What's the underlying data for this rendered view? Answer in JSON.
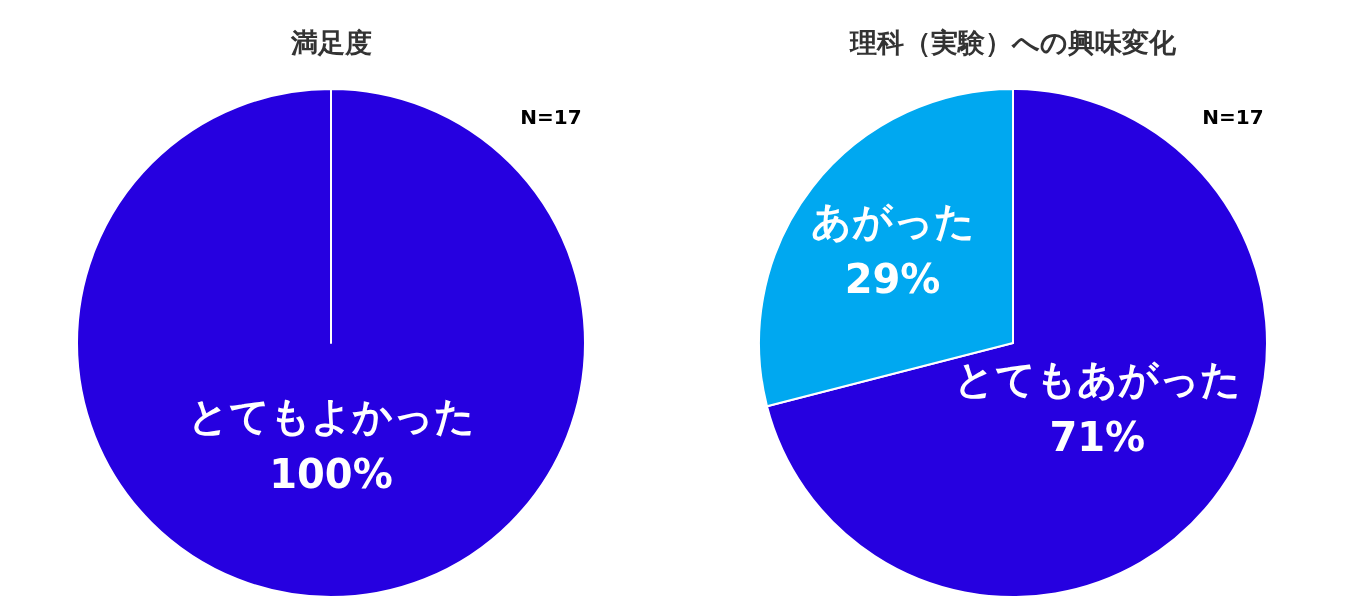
{
  "chart_data": [
    {
      "type": "pie",
      "title": "満足度",
      "categories": [
        "とてもよかった"
      ],
      "values": [
        100
      ],
      "colors": [
        "#2600e0"
      ],
      "value_labels": [
        "100%"
      ],
      "annotations": [
        "N=17"
      ]
    },
    {
      "type": "pie",
      "title": "理科（実験）への興味変化",
      "categories": [
        "とてもあがった",
        "あがった"
      ],
      "values": [
        71,
        29
      ],
      "colors": [
        "#2600e0",
        "#00a8f0"
      ],
      "value_labels": [
        "71%",
        "29%"
      ],
      "annotations": [
        "N=17"
      ]
    }
  ]
}
